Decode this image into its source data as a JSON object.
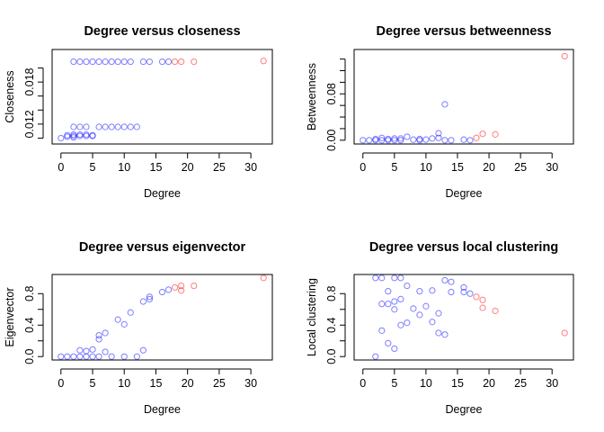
{
  "chart_data": [
    {
      "type": "scatter",
      "title": "Degree versus closeness",
      "xlabel": "Degree",
      "ylabel": "Closeness",
      "xlim": [
        0,
        32
      ],
      "ylim": [
        0.0097,
        0.0221
      ],
      "xticks": [
        "0",
        "5",
        "10",
        "15",
        "20",
        "25",
        "30"
      ],
      "xtick_values": [
        0,
        5,
        10,
        15,
        20,
        25,
        30
      ],
      "yticks": [
        "0.012",
        "0.018"
      ],
      "ytick_values": [
        0.012,
        0.018
      ],
      "yminor": [
        0.01,
        0.014,
        0.016,
        0.02
      ],
      "grid": false,
      "points": [
        {
          "x": 0,
          "y": 0.01,
          "c": "blue"
        },
        {
          "x": 1,
          "y": 0.0102,
          "c": "blue"
        },
        {
          "x": 1,
          "y": 0.0104,
          "c": "blue"
        },
        {
          "x": 2,
          "y": 0.0101,
          "c": "blue"
        },
        {
          "x": 2,
          "y": 0.0103,
          "c": "blue"
        },
        {
          "x": 2,
          "y": 0.0105,
          "c": "blue"
        },
        {
          "x": 3,
          "y": 0.0103,
          "c": "blue"
        },
        {
          "x": 3,
          "y": 0.0105,
          "c": "blue"
        },
        {
          "x": 4,
          "y": 0.0103,
          "c": "blue"
        },
        {
          "x": 4,
          "y": 0.0105,
          "c": "blue"
        },
        {
          "x": 5,
          "y": 0.0104,
          "c": "blue"
        },
        {
          "x": 5,
          "y": 0.0103,
          "c": "blue"
        },
        {
          "x": 2,
          "y": 0.0116,
          "c": "blue"
        },
        {
          "x": 3,
          "y": 0.0116,
          "c": "blue"
        },
        {
          "x": 4,
          "y": 0.0116,
          "c": "blue"
        },
        {
          "x": 6,
          "y": 0.0116,
          "c": "blue"
        },
        {
          "x": 7,
          "y": 0.0116,
          "c": "blue"
        },
        {
          "x": 8,
          "y": 0.0116,
          "c": "blue"
        },
        {
          "x": 9,
          "y": 0.0116,
          "c": "blue"
        },
        {
          "x": 10,
          "y": 0.0116,
          "c": "blue"
        },
        {
          "x": 11,
          "y": 0.0116,
          "c": "blue"
        },
        {
          "x": 12,
          "y": 0.0116,
          "c": "blue"
        },
        {
          "x": 2,
          "y": 0.0209,
          "c": "blue"
        },
        {
          "x": 3,
          "y": 0.0209,
          "c": "blue"
        },
        {
          "x": 4,
          "y": 0.0209,
          "c": "blue"
        },
        {
          "x": 5,
          "y": 0.0209,
          "c": "blue"
        },
        {
          "x": 6,
          "y": 0.0209,
          "c": "blue"
        },
        {
          "x": 7,
          "y": 0.0209,
          "c": "blue"
        },
        {
          "x": 8,
          "y": 0.0209,
          "c": "blue"
        },
        {
          "x": 9,
          "y": 0.0209,
          "c": "blue"
        },
        {
          "x": 10,
          "y": 0.0209,
          "c": "blue"
        },
        {
          "x": 11,
          "y": 0.0209,
          "c": "blue"
        },
        {
          "x": 13,
          "y": 0.0209,
          "c": "blue"
        },
        {
          "x": 14,
          "y": 0.0209,
          "c": "blue"
        },
        {
          "x": 16,
          "y": 0.0209,
          "c": "blue"
        },
        {
          "x": 17,
          "y": 0.0209,
          "c": "blue"
        },
        {
          "x": 18,
          "y": 0.0209,
          "c": "red"
        },
        {
          "x": 19,
          "y": 0.0209,
          "c": "red"
        },
        {
          "x": 21,
          "y": 0.0209,
          "c": "red"
        },
        {
          "x": 32,
          "y": 0.021,
          "c": "red"
        }
      ]
    },
    {
      "type": "scatter",
      "title": "Degree versus betweenness",
      "xlabel": "Degree",
      "ylabel": "Betweenness",
      "xlim": [
        0,
        32
      ],
      "ylim": [
        0,
        0.15
      ],
      "xticks": [
        "0",
        "5",
        "10",
        "15",
        "20",
        "25",
        "30"
      ],
      "xtick_values": [
        0,
        5,
        10,
        15,
        20,
        25,
        30
      ],
      "yticks": [
        "0.00",
        "0.08"
      ],
      "ytick_values": [
        0.0,
        0.08
      ],
      "yminor": [
        0.02,
        0.04,
        0.06,
        0.1,
        0.12,
        0.14
      ],
      "grid": false,
      "points": [
        {
          "x": 0,
          "y": 0.0,
          "c": "blue"
        },
        {
          "x": 1,
          "y": 0.0,
          "c": "blue"
        },
        {
          "x": 2,
          "y": 0.0,
          "c": "blue"
        },
        {
          "x": 2,
          "y": 0.002,
          "c": "blue"
        },
        {
          "x": 3,
          "y": 0.0,
          "c": "blue"
        },
        {
          "x": 3,
          "y": 0.004,
          "c": "blue"
        },
        {
          "x": 4,
          "y": 0.0,
          "c": "blue"
        },
        {
          "x": 4,
          "y": 0.002,
          "c": "blue"
        },
        {
          "x": 5,
          "y": 0.0,
          "c": "blue"
        },
        {
          "x": 5,
          "y": 0.003,
          "c": "blue"
        },
        {
          "x": 6,
          "y": 0.0,
          "c": "blue"
        },
        {
          "x": 6,
          "y": 0.003,
          "c": "blue"
        },
        {
          "x": 7,
          "y": 0.006,
          "c": "blue"
        },
        {
          "x": 8,
          "y": 0.001,
          "c": "blue"
        },
        {
          "x": 9,
          "y": 0.0,
          "c": "blue"
        },
        {
          "x": 9,
          "y": 0.002,
          "c": "blue"
        },
        {
          "x": 10,
          "y": 0.001,
          "c": "blue"
        },
        {
          "x": 11,
          "y": 0.003,
          "c": "blue"
        },
        {
          "x": 12,
          "y": 0.012,
          "c": "blue"
        },
        {
          "x": 12,
          "y": 0.004,
          "c": "blue"
        },
        {
          "x": 13,
          "y": 0.062,
          "c": "blue"
        },
        {
          "x": 13,
          "y": 0.0,
          "c": "blue"
        },
        {
          "x": 14,
          "y": 0.0,
          "c": "blue"
        },
        {
          "x": 16,
          "y": 0.001,
          "c": "blue"
        },
        {
          "x": 17,
          "y": 0.0,
          "c": "blue"
        },
        {
          "x": 18,
          "y": 0.004,
          "c": "red"
        },
        {
          "x": 19,
          "y": 0.011,
          "c": "red"
        },
        {
          "x": 21,
          "y": 0.01,
          "c": "red"
        },
        {
          "x": 32,
          "y": 0.145,
          "c": "red"
        }
      ]
    },
    {
      "type": "scatter",
      "title": "Degree versus eigenvector",
      "xlabel": "Degree",
      "ylabel": "Eigenvector",
      "xlim": [
        0,
        32
      ],
      "ylim": [
        0,
        1.0
      ],
      "xticks": [
        "0",
        "5",
        "10",
        "15",
        "20",
        "25",
        "30"
      ],
      "xtick_values": [
        0,
        5,
        10,
        15,
        20,
        25,
        30
      ],
      "yticks": [
        "0.0",
        "0.4",
        "0.8"
      ],
      "ytick_values": [
        0.0,
        0.4,
        0.8
      ],
      "yminor": [
        0.2,
        0.6
      ],
      "grid": false,
      "points": [
        {
          "x": 0,
          "y": 0.0,
          "c": "blue"
        },
        {
          "x": 1,
          "y": 0.0,
          "c": "blue"
        },
        {
          "x": 2,
          "y": 0.0,
          "c": "blue"
        },
        {
          "x": 3,
          "y": 0.0,
          "c": "blue"
        },
        {
          "x": 3,
          "y": 0.08,
          "c": "blue"
        },
        {
          "x": 4,
          "y": 0.0,
          "c": "blue"
        },
        {
          "x": 4,
          "y": 0.07,
          "c": "blue"
        },
        {
          "x": 5,
          "y": 0.0,
          "c": "blue"
        },
        {
          "x": 5,
          "y": 0.09,
          "c": "blue"
        },
        {
          "x": 6,
          "y": 0.0,
          "c": "blue"
        },
        {
          "x": 6,
          "y": 0.22,
          "c": "blue"
        },
        {
          "x": 6,
          "y": 0.27,
          "c": "blue"
        },
        {
          "x": 7,
          "y": 0.06,
          "c": "blue"
        },
        {
          "x": 7,
          "y": 0.3,
          "c": "blue"
        },
        {
          "x": 8,
          "y": 0.0,
          "c": "blue"
        },
        {
          "x": 9,
          "y": 0.47,
          "c": "blue"
        },
        {
          "x": 10,
          "y": 0.41,
          "c": "blue"
        },
        {
          "x": 10,
          "y": 0.0,
          "c": "blue"
        },
        {
          "x": 11,
          "y": 0.56,
          "c": "blue"
        },
        {
          "x": 12,
          "y": 0.0,
          "c": "blue"
        },
        {
          "x": 13,
          "y": 0.08,
          "c": "blue"
        },
        {
          "x": 13,
          "y": 0.7,
          "c": "blue"
        },
        {
          "x": 14,
          "y": 0.73,
          "c": "blue"
        },
        {
          "x": 14,
          "y": 0.76,
          "c": "blue"
        },
        {
          "x": 16,
          "y": 0.82,
          "c": "blue"
        },
        {
          "x": 17,
          "y": 0.85,
          "c": "blue"
        },
        {
          "x": 18,
          "y": 0.88,
          "c": "red"
        },
        {
          "x": 19,
          "y": 0.84,
          "c": "red"
        },
        {
          "x": 19,
          "y": 0.9,
          "c": "red"
        },
        {
          "x": 21,
          "y": 0.9,
          "c": "red"
        },
        {
          "x": 32,
          "y": 1.0,
          "c": "red"
        }
      ]
    },
    {
      "type": "scatter",
      "title": "Degree versus local clustering",
      "xlabel": "Degree",
      "ylabel": "Local clustering",
      "xlim": [
        0,
        32
      ],
      "ylim": [
        0,
        1.0
      ],
      "xticks": [
        "0",
        "5",
        "10",
        "15",
        "20",
        "25",
        "30"
      ],
      "xtick_values": [
        0,
        5,
        10,
        15,
        20,
        25,
        30
      ],
      "yticks": [
        "0.0",
        "0.4",
        "0.8"
      ],
      "ytick_values": [
        0.0,
        0.4,
        0.8
      ],
      "yminor": [
        0.2,
        0.6
      ],
      "grid": false,
      "points": [
        {
          "x": 2,
          "y": 1.0,
          "c": "blue"
        },
        {
          "x": 3,
          "y": 1.0,
          "c": "blue"
        },
        {
          "x": 5,
          "y": 1.0,
          "c": "blue"
        },
        {
          "x": 6,
          "y": 1.0,
          "c": "blue"
        },
        {
          "x": 2,
          "y": 0.0,
          "c": "blue"
        },
        {
          "x": 3,
          "y": 0.67,
          "c": "blue"
        },
        {
          "x": 3,
          "y": 0.33,
          "c": "blue"
        },
        {
          "x": 4,
          "y": 0.67,
          "c": "blue"
        },
        {
          "x": 4,
          "y": 0.83,
          "c": "blue"
        },
        {
          "x": 4,
          "y": 0.17,
          "c": "blue"
        },
        {
          "x": 5,
          "y": 0.6,
          "c": "blue"
        },
        {
          "x": 5,
          "y": 0.7,
          "c": "blue"
        },
        {
          "x": 5,
          "y": 0.1,
          "c": "blue"
        },
        {
          "x": 6,
          "y": 0.4,
          "c": "blue"
        },
        {
          "x": 6,
          "y": 0.73,
          "c": "blue"
        },
        {
          "x": 7,
          "y": 0.43,
          "c": "blue"
        },
        {
          "x": 7,
          "y": 0.9,
          "c": "blue"
        },
        {
          "x": 8,
          "y": 0.61,
          "c": "blue"
        },
        {
          "x": 9,
          "y": 0.83,
          "c": "blue"
        },
        {
          "x": 9,
          "y": 0.53,
          "c": "blue"
        },
        {
          "x": 10,
          "y": 0.64,
          "c": "blue"
        },
        {
          "x": 11,
          "y": 0.44,
          "c": "blue"
        },
        {
          "x": 11,
          "y": 0.84,
          "c": "blue"
        },
        {
          "x": 12,
          "y": 0.55,
          "c": "blue"
        },
        {
          "x": 12,
          "y": 0.3,
          "c": "blue"
        },
        {
          "x": 13,
          "y": 0.97,
          "c": "blue"
        },
        {
          "x": 13,
          "y": 0.28,
          "c": "blue"
        },
        {
          "x": 14,
          "y": 0.82,
          "c": "blue"
        },
        {
          "x": 14,
          "y": 0.95,
          "c": "blue"
        },
        {
          "x": 16,
          "y": 0.88,
          "c": "blue"
        },
        {
          "x": 16,
          "y": 0.82,
          "c": "blue"
        },
        {
          "x": 17,
          "y": 0.8,
          "c": "blue"
        },
        {
          "x": 18,
          "y": 0.76,
          "c": "red"
        },
        {
          "x": 19,
          "y": 0.62,
          "c": "red"
        },
        {
          "x": 19,
          "y": 0.72,
          "c": "red"
        },
        {
          "x": 21,
          "y": 0.58,
          "c": "red"
        },
        {
          "x": 32,
          "y": 0.3,
          "c": "red"
        }
      ]
    }
  ],
  "colors": {
    "low_degree": "#0000ff",
    "high_degree": "#ff0000",
    "axis": "#000000",
    "background": "#ffffff"
  }
}
